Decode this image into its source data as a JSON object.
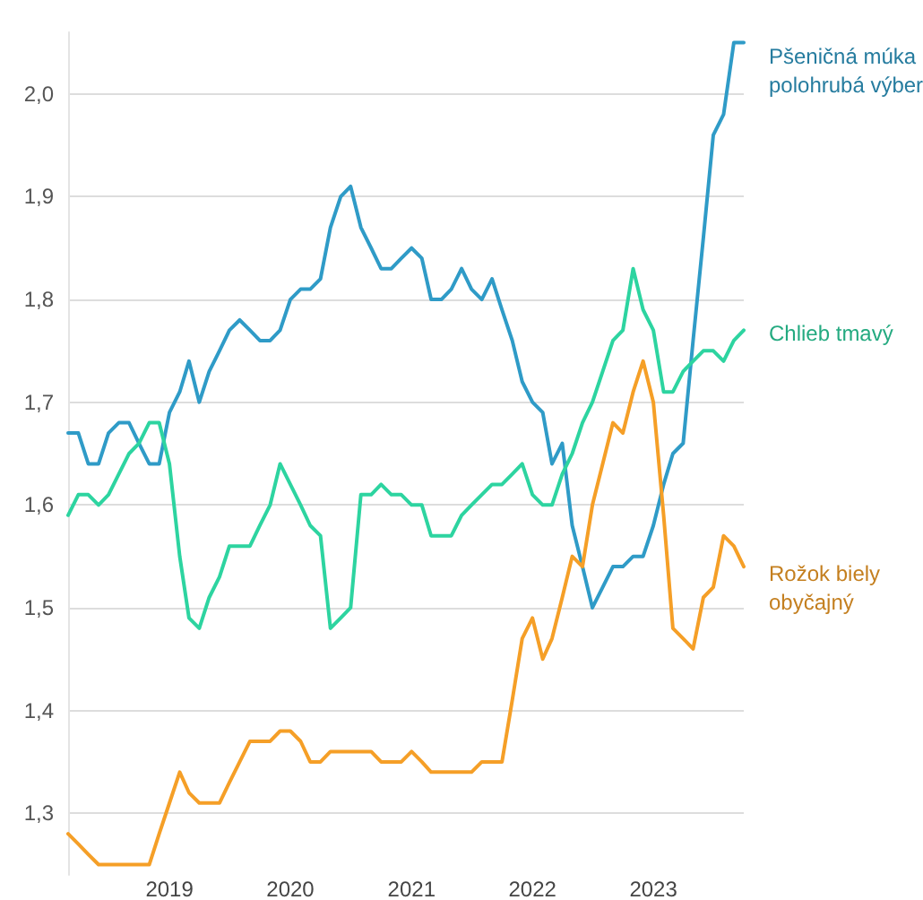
{
  "chart_data": {
    "type": "line",
    "x": [
      "2018-03",
      "2018-04",
      "2018-05",
      "2018-06",
      "2018-07",
      "2018-08",
      "2018-09",
      "2018-10",
      "2018-11",
      "2018-12",
      "2019-01",
      "2019-02",
      "2019-03",
      "2019-04",
      "2019-05",
      "2019-06",
      "2019-07",
      "2019-08",
      "2019-09",
      "2019-10",
      "2019-11",
      "2019-12",
      "2020-01",
      "2020-02",
      "2020-03",
      "2020-04",
      "2020-05",
      "2020-06",
      "2020-07",
      "2020-08",
      "2020-09",
      "2020-10",
      "2020-11",
      "2020-12",
      "2021-01",
      "2021-02",
      "2021-03",
      "2021-04",
      "2021-05",
      "2021-06",
      "2021-07",
      "2021-08",
      "2021-09",
      "2021-10",
      "2021-11",
      "2021-12",
      "2022-01",
      "2022-02",
      "2022-03",
      "2022-04",
      "2022-05",
      "2022-06",
      "2022-07",
      "2022-08",
      "2022-09",
      "2022-10",
      "2022-11",
      "2022-12",
      "2023-01",
      "2023-02",
      "2023-03",
      "2023-04",
      "2023-05",
      "2023-06",
      "2023-07",
      "2023-08",
      "2023-09",
      "2023-10"
    ],
    "series": [
      {
        "name": "Pšeničná múka\npolohrubá výber",
        "color": "#2f9bc7",
        "values": [
          1.67,
          1.67,
          1.64,
          1.64,
          1.67,
          1.68,
          1.68,
          1.66,
          1.64,
          1.64,
          1.69,
          1.71,
          1.74,
          1.7,
          1.73,
          1.75,
          1.77,
          1.78,
          1.77,
          1.76,
          1.76,
          1.77,
          1.8,
          1.81,
          1.81,
          1.82,
          1.87,
          1.9,
          1.91,
          1.87,
          1.85,
          1.83,
          1.83,
          1.84,
          1.85,
          1.84,
          1.8,
          1.8,
          1.81,
          1.83,
          1.81,
          1.8,
          1.82,
          1.79,
          1.76,
          1.72,
          1.7,
          1.69,
          1.64,
          1.66,
          1.58,
          1.54,
          1.5,
          1.52,
          1.54,
          1.54,
          1.55,
          1.55,
          1.58,
          1.62,
          1.65,
          1.66,
          1.76,
          1.86,
          1.96,
          1.98,
          2.05,
          2.05
        ]
      },
      {
        "name": "Chlieb tmavý",
        "color": "#2dd4a0",
        "values": [
          1.59,
          1.61,
          1.61,
          1.6,
          1.61,
          1.63,
          1.65,
          1.66,
          1.68,
          1.68,
          1.64,
          1.55,
          1.49,
          1.48,
          1.51,
          1.53,
          1.56,
          1.56,
          1.56,
          1.58,
          1.6,
          1.64,
          1.62,
          1.6,
          1.58,
          1.57,
          1.48,
          1.49,
          1.5,
          1.61,
          1.61,
          1.62,
          1.61,
          1.61,
          1.6,
          1.6,
          1.57,
          1.57,
          1.57,
          1.59,
          1.6,
          1.61,
          1.62,
          1.62,
          1.63,
          1.64,
          1.61,
          1.6,
          1.6,
          1.63,
          1.65,
          1.68,
          1.7,
          1.73,
          1.76,
          1.77,
          1.83,
          1.79,
          1.77,
          1.71,
          1.71,
          1.73,
          1.74,
          1.75,
          1.75,
          1.74,
          1.76,
          1.77
        ]
      },
      {
        "name": "Rožok biely\nobyčajný",
        "color": "#f59f27",
        "values": [
          1.28,
          1.27,
          1.26,
          1.25,
          1.25,
          1.25,
          1.25,
          1.25,
          1.25,
          1.28,
          1.31,
          1.34,
          1.32,
          1.31,
          1.31,
          1.31,
          1.33,
          1.35,
          1.37,
          1.37,
          1.37,
          1.38,
          1.38,
          1.37,
          1.35,
          1.35,
          1.36,
          1.36,
          1.36,
          1.36,
          1.36,
          1.35,
          1.35,
          1.35,
          1.36,
          1.35,
          1.34,
          1.34,
          1.34,
          1.34,
          1.34,
          1.35,
          1.35,
          1.35,
          1.41,
          1.47,
          1.49,
          1.45,
          1.47,
          1.51,
          1.55,
          1.54,
          1.6,
          1.64,
          1.68,
          1.67,
          1.71,
          1.74,
          1.7,
          1.59,
          1.48,
          1.47,
          1.46,
          1.51,
          1.52,
          1.57,
          1.56,
          1.54
        ]
      }
    ],
    "xlim": [
      "2018-03",
      "2023-10"
    ],
    "xticks": [
      {
        "value": "2019",
        "label": "2019"
      },
      {
        "value": "2020",
        "label": "2020"
      },
      {
        "value": "2021",
        "label": "2021"
      },
      {
        "value": "2022",
        "label": "2022"
      },
      {
        "value": "2023",
        "label": "2023"
      }
    ],
    "ylim": [
      1.24,
      2.06
    ],
    "yticks": [
      {
        "value": 1.3,
        "label": "1,3"
      },
      {
        "value": 1.4,
        "label": "1,4"
      },
      {
        "value": 1.5,
        "label": "1,5"
      },
      {
        "value": 1.6,
        "label": "1,6"
      },
      {
        "value": 1.7,
        "label": "1,7"
      },
      {
        "value": 1.8,
        "label": "1,8"
      },
      {
        "value": 1.9,
        "label": "1,9"
      },
      {
        "value": 2,
        "label": "2,0"
      }
    ],
    "grid": "y",
    "legend": false,
    "marker": "none",
    "line_style": "solid"
  }
}
